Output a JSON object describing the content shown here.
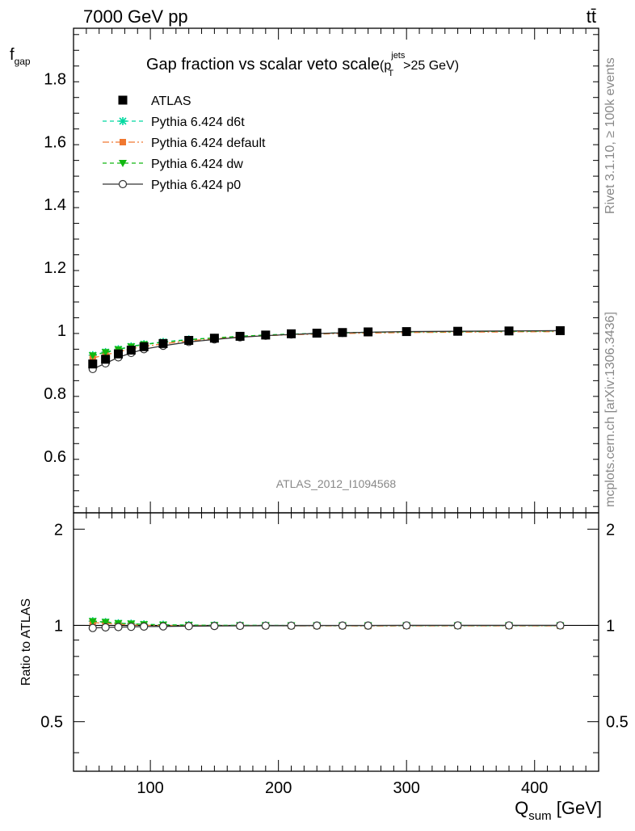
{
  "header": {
    "energy_label": "7000 GeV pp",
    "process_label": "tt̄",
    "rivet_label": "Rivet 3.1.10, ≥ 100k events",
    "mcplots_label": "mcplots.cern.ch [arXiv:1306.3436]",
    "analysis_label": "ATLAS_2012_I1094568"
  },
  "chart_data": [
    {
      "type": "scatter",
      "panel": "main",
      "title": "Gap fraction vs scalar veto scale",
      "title_suffix": {
        "base": "(p",
        "sup": "jets",
        "sub": "T",
        "tail": ">25 GeV)"
      },
      "ylabel": {
        "base": "f",
        "sub": "gap"
      },
      "ylim": [
        0.42,
        1.96
      ],
      "xlim": [
        40,
        450
      ],
      "yticks": [
        0.6,
        0.8,
        1.0,
        1.2,
        1.4,
        1.6,
        1.8
      ],
      "ytick_labels": [
        "0.6",
        "0.8",
        "1",
        "1.2",
        "1.4",
        "1.6",
        "1.8"
      ],
      "legend_position": "top-left",
      "x": [
        55,
        65,
        75,
        85,
        95,
        110,
        130,
        150,
        170,
        190,
        210,
        230,
        250,
        270,
        300,
        340,
        380,
        420
      ],
      "series": [
        {
          "name": "ATLAS",
          "color": "#000000",
          "marker": "square",
          "style": "data",
          "values": [
            0.893,
            0.908,
            0.925,
            0.937,
            0.948,
            0.958,
            0.968,
            0.975,
            0.981,
            0.985,
            0.989,
            0.991,
            0.993,
            0.995,
            0.996,
            0.997,
            0.998,
            0.999
          ]
        },
        {
          "name": "Pythia 6.424 d6t",
          "color": "#00d8a0",
          "marker": "star",
          "style": "dash",
          "values": [
            0.921,
            0.931,
            0.94,
            0.949,
            0.956,
            0.963,
            0.971,
            0.976,
            0.981,
            0.985,
            0.988,
            0.99,
            0.992,
            0.994,
            0.995,
            0.996,
            0.997,
            0.998
          ]
        },
        {
          "name": "Pythia 6.424 default",
          "color": "#f07830",
          "marker": "square",
          "style": "dashdot",
          "values": [
            0.912,
            0.922,
            0.932,
            0.941,
            0.949,
            0.957,
            0.967,
            0.973,
            0.979,
            0.983,
            0.986,
            0.988,
            0.99,
            0.991,
            0.993,
            0.994,
            0.995,
            0.996
          ]
        },
        {
          "name": "Pythia 6.424 dw",
          "color": "#10b810",
          "marker": "triangle-down",
          "style": "dash",
          "values": [
            0.92,
            0.93,
            0.939,
            0.948,
            0.955,
            0.962,
            0.97,
            0.976,
            0.981,
            0.985,
            0.988,
            0.99,
            0.992,
            0.994,
            0.995,
            0.996,
            0.997,
            0.998
          ]
        },
        {
          "name": "Pythia 6.424 p0",
          "color": "#333333",
          "marker": "open-circle",
          "style": "solid",
          "values": [
            0.877,
            0.895,
            0.914,
            0.928,
            0.94,
            0.951,
            0.963,
            0.971,
            0.978,
            0.983,
            0.987,
            0.99,
            0.992,
            0.994,
            0.996,
            0.997,
            0.998,
            0.999
          ]
        }
      ]
    },
    {
      "type": "scatter",
      "panel": "ratio",
      "ylabel": "Ratio to ATLAS",
      "xlabel": {
        "base": "Q",
        "sub": "sum",
        "tail": " [GeV]"
      },
      "ylim": [
        0.35,
        2.25
      ],
      "xlim": [
        40,
        450
      ],
      "yticks": [
        0.5,
        1,
        2
      ],
      "ytick_labels": [
        "0.5",
        "1",
        "2"
      ],
      "xticks": [
        100,
        200,
        300,
        400
      ],
      "xtick_labels": [
        "100",
        "200",
        "300",
        "400"
      ],
      "x": [
        55,
        65,
        75,
        85,
        95,
        110,
        130,
        150,
        170,
        190,
        210,
        230,
        250,
        270,
        300,
        340,
        380,
        420
      ],
      "series": [
        {
          "name": "Pythia 6.424 d6t",
          "values": [
            1.031,
            1.025,
            1.016,
            1.013,
            1.008,
            1.005,
            1.003,
            1.001,
            1.0,
            1.0,
            0.999,
            0.999,
            0.999,
            0.999,
            0.999,
            0.999,
            0.999,
            0.999
          ]
        },
        {
          "name": "Pythia 6.424 default",
          "values": [
            1.021,
            1.015,
            1.008,
            1.004,
            1.001,
            0.999,
            0.999,
            0.998,
            0.998,
            0.998,
            0.997,
            0.997,
            0.997,
            0.996,
            0.997,
            0.997,
            0.997,
            0.997
          ]
        },
        {
          "name": "Pythia 6.424 dw",
          "values": [
            1.03,
            1.024,
            1.015,
            1.012,
            1.007,
            1.004,
            1.002,
            1.001,
            1.0,
            1.0,
            0.999,
            0.999,
            0.999,
            0.999,
            0.999,
            0.999,
            0.999,
            0.999
          ]
        },
        {
          "name": "Pythia 6.424 p0",
          "values": [
            0.982,
            0.986,
            0.988,
            0.99,
            0.992,
            0.993,
            0.995,
            0.996,
            0.997,
            0.998,
            0.998,
            0.999,
            0.999,
            0.999,
            1.0,
            1.0,
            1.0,
            1.0
          ]
        }
      ]
    }
  ]
}
